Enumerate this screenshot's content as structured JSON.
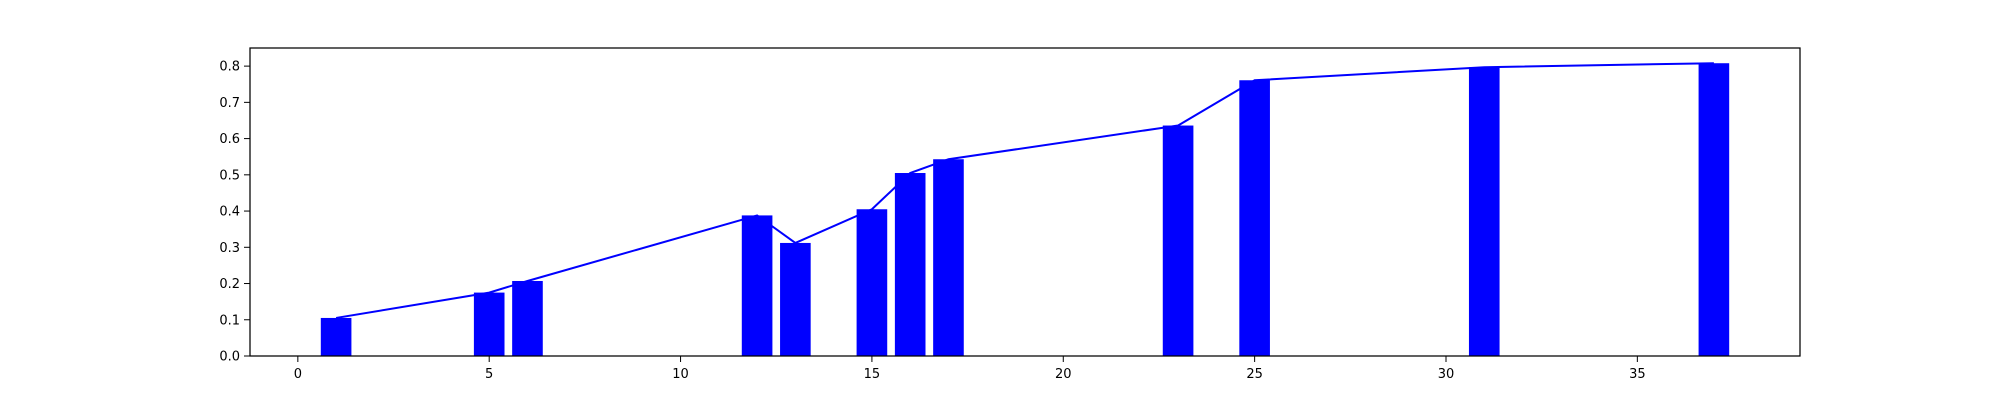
{
  "chart_data": {
    "type": "bar",
    "title": "",
    "xlabel": "",
    "ylabel": "",
    "xlim": [
      -1.25,
      39.25
    ],
    "ylim": [
      0,
      0.85
    ],
    "grid": false,
    "xticks": [
      0,
      5,
      10,
      15,
      20,
      25,
      30,
      35
    ],
    "yticks": [
      0.0,
      0.1,
      0.2,
      0.3,
      0.4,
      0.5,
      0.6,
      0.7,
      0.8
    ],
    "ytick_labels": [
      "0.0",
      "0.1",
      "0.2",
      "0.3",
      "0.4",
      "0.5",
      "0.6",
      "0.7",
      "0.8"
    ],
    "x": [
      1,
      5,
      6,
      12,
      13,
      15,
      16,
      17,
      23,
      25,
      31,
      37
    ],
    "values": [
      0.105,
      0.175,
      0.207,
      0.388,
      0.312,
      0.405,
      0.505,
      0.543,
      0.636,
      0.761,
      0.797,
      0.808
    ],
    "colors": {
      "bar": "#0000ff",
      "line": "#0000ff",
      "axes": "#000000"
    }
  }
}
